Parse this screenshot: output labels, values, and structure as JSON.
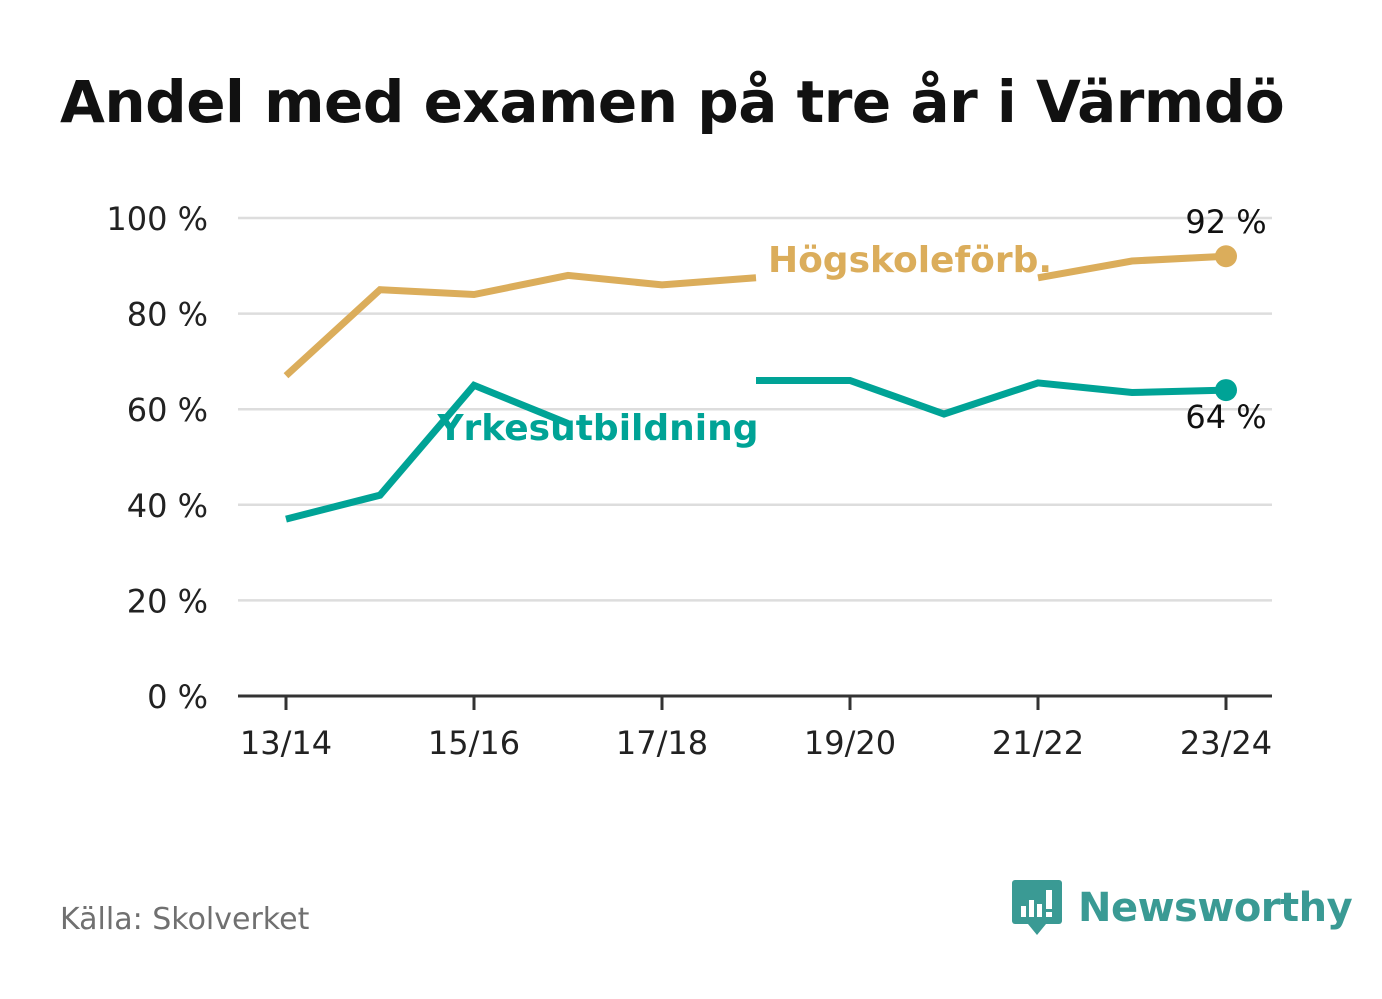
{
  "title": "Andel med examen på tre år i Värmdö",
  "source": "Källa: Skolverket",
  "brand": "Newsworthy",
  "chart_data": {
    "type": "line",
    "categories": [
      "13/14",
      "14/15",
      "15/16",
      "16/17",
      "17/18",
      "18/19",
      "19/20",
      "20/21",
      "21/22",
      "22/23",
      "23/24"
    ],
    "x_tick_labels": [
      "13/14",
      "15/16",
      "17/18",
      "19/20",
      "21/22",
      "23/24"
    ],
    "ylim": [
      0,
      100
    ],
    "y_ticks": [
      0,
      20,
      40,
      60,
      80,
      100
    ],
    "y_tick_suffix": " %",
    "grid": true,
    "series": [
      {
        "name": "Högskoleförb.",
        "color": "#dbad5b",
        "values": [
          67,
          85,
          84,
          88,
          86,
          87.5,
          null,
          null,
          87.5,
          91,
          92
        ],
        "end_label": "92 %"
      },
      {
        "name": "Yrkesutbildning",
        "color": "#00a396",
        "values": [
          37,
          42,
          65,
          57,
          null,
          66,
          66,
          59,
          65.5,
          63.5,
          64
        ],
        "end_label": "64 %"
      }
    ]
  },
  "colors": {
    "grid": "#dddddd",
    "axis": "#333333",
    "text": "#222222"
  }
}
